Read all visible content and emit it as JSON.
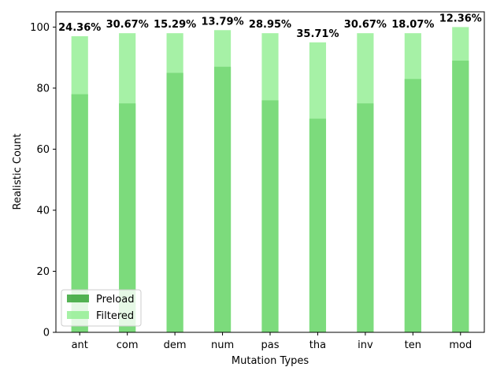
{
  "chart_data": {
    "type": "bar",
    "categories": [
      "ant",
      "com",
      "dem",
      "num",
      "pas",
      "tha",
      "inv",
      "ten",
      "mod"
    ],
    "series": [
      {
        "name": "Preload",
        "values": [
          78,
          75,
          85,
          87,
          76,
          70,
          75,
          83,
          89
        ],
        "color": "#2ca02c"
      },
      {
        "name": "Filtered",
        "values": [
          97,
          98,
          98,
          99,
          98,
          95,
          98,
          98,
          100
        ],
        "color": "#90ee90"
      }
    ],
    "data_labels": [
      "24.36%",
      "30.67%",
      "15.29%",
      "13.79%",
      "28.95%",
      "35.71%",
      "30.67%",
      "18.07%",
      "12.36%"
    ],
    "xlabel": "Mutation Types",
    "ylabel": "Realistic Count",
    "ylim": [
      0,
      105
    ],
    "yticks": [
      0,
      20,
      40,
      60,
      80,
      100
    ],
    "grid": false,
    "legend_position": "lower-left",
    "bar_alpha": 0.8,
    "filtered_alpha": 0.8
  }
}
